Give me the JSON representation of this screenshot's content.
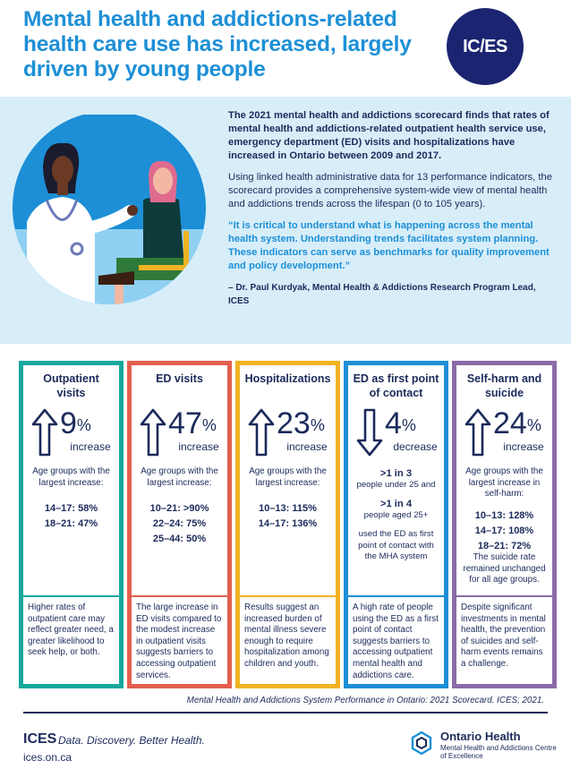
{
  "header": {
    "title": "Mental health and addictions-related health care use has increased, largely driven by young people",
    "logo_text": "IC/ES"
  },
  "intro": {
    "lead": "The 2021 mental health and addictions scorecard finds that rates of mental health and addictions-related outpatient health service use, emergency department (ED) visits and hospitalizations have increased in Ontario between 2009 and 2017.",
    "body": "Using linked health administrative data for 13 performance indicators, the scorecard provides a comprehensive system-wide view of mental health and addictions trends across the lifespan (0 to 105 years).",
    "quote": "“It is critical to understand what is happening across the mental health system. Understanding trends facilitates system planning. These indicators can serve as benchmarks for quality improvement and policy development.”",
    "cite": "– Dr. Paul Kurdyak, Mental Health & Addictions Research Program Lead, ICES"
  },
  "cards": {
    "outpatient": {
      "heading": "Outpatient visits",
      "value": "9",
      "unit": "%",
      "label": "increase",
      "direction": "up",
      "sub": "Age groups with the largest increase:",
      "ages": [
        "14–17: 58%",
        "18–21: 47%"
      ],
      "foot": "Higher rates of outpatient care may reflect greater need, a greater likelihood to seek help, or both."
    },
    "ed": {
      "heading": "ED visits",
      "value": "47",
      "unit": "%",
      "label": "increase",
      "direction": "up",
      "sub": "Age groups with the largest increase:",
      "ages": [
        "10–21: >90%",
        "22–24: 75%",
        "25–44: 50%"
      ],
      "foot": "The large increase in ED visits compared to the modest increase in outpatient visits suggests barriers to accessing outpatient services."
    },
    "hosp": {
      "heading": "Hospitalizations",
      "value": "23",
      "unit": "%",
      "label": "increase",
      "direction": "up",
      "sub": "Age groups with the largest increase:",
      "ages": [
        "10–13: 115%",
        "14–17: 136%"
      ],
      "foot": "Results suggest an increased burden of mental illness severe enough to require hospitalization among children and youth."
    },
    "first": {
      "heading": "ED as first point of contact",
      "value": "4",
      "unit": "%",
      "label": "decrease",
      "direction": "down",
      "stat1_big": ">1 in 3",
      "stat1_small": "people under 25 and",
      "stat2_big": ">1 in 4",
      "stat2_small": "people aged 25+",
      "tail": "used the ED as first point of contact with the MHA system",
      "foot": "A high rate of people using the ED as a first point of contact suggests barriers to accessing outpatient mental health and addictions care."
    },
    "selfharm": {
      "heading": "Self-harm and suicide",
      "value": "24",
      "unit": "%",
      "label": "increase",
      "direction": "up",
      "sub": "Age groups with the largest increase in self-harm:",
      "ages": [
        "10–13: 128%",
        "14–17: 108%",
        "18–21: 72%"
      ],
      "note": "The suicide rate remained unchanged for all age groups.",
      "foot": "Despite significant investments in mental health, the prevention of suicides and self-harm events remains a challenge."
    }
  },
  "footer": {
    "source": "Mental Health and Addictions System Performance in Ontario: 2021 Scorecard. ICES; 2021.",
    "ices": "ICES",
    "tagline": "Data. Discovery. Better Health.",
    "url": "ices.on.ca",
    "oh_name": "Ontario Health",
    "oh_sub": "Mental Health and Addictions Centre of Excellence"
  },
  "colors": {
    "title_blue": "#1d8fd6",
    "navy": "#1b2a5a",
    "teal": "#17a89e",
    "coral": "#e35f4f",
    "gold": "#f0b323",
    "blue": "#1d8fd6",
    "purple": "#8b6ba8",
    "intro_bg": "#d7eef9"
  }
}
